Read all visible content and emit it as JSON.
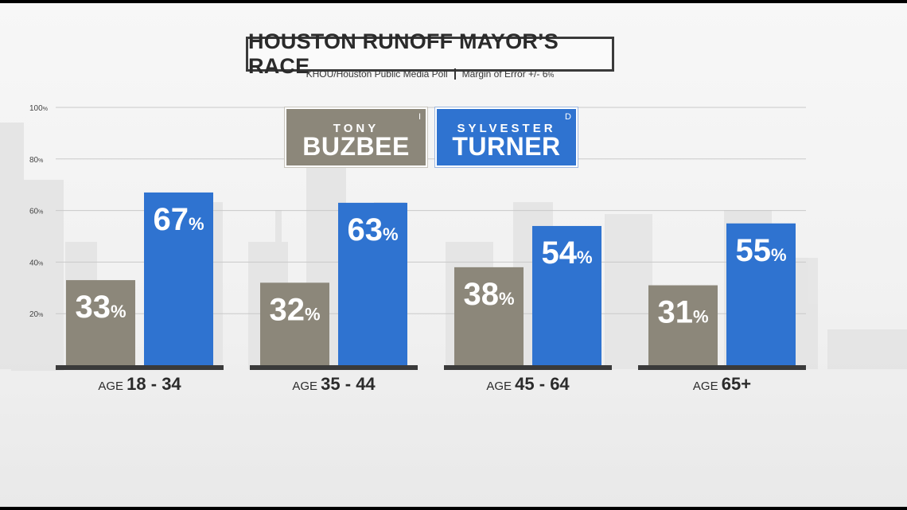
{
  "title": "HOUSTON RUNOFF MAYOR’S RACE",
  "subtitle": {
    "source": "KHOU/Houston Public Media Poll",
    "margin_label": "Margin of Error +/- 6",
    "margin_unit": "%"
  },
  "legend": [
    {
      "first": "TONY",
      "last": "BUZBEE",
      "party": "I",
      "color": "#8c877a"
    },
    {
      "first": "SYLVESTER",
      "last": "TURNER",
      "party": "D",
      "color": "#2f73d0"
    }
  ],
  "chart_data": {
    "type": "bar",
    "categories": [
      {
        "prefix": "AGE",
        "range": "18 - 34"
      },
      {
        "prefix": "AGE",
        "range": "35 - 44"
      },
      {
        "prefix": "AGE",
        "range": "45 - 64"
      },
      {
        "prefix": "AGE",
        "range": "65+"
      }
    ],
    "series": [
      {
        "name": "BUZBEE",
        "color": "#8c877a",
        "values": [
          33,
          32,
          38,
          31
        ]
      },
      {
        "name": "TURNER",
        "color": "#2f73d0",
        "values": [
          67,
          63,
          54,
          55
        ]
      }
    ],
    "yticks": [
      "20",
      "40",
      "60",
      "80",
      "100"
    ],
    "ytick_unit": "%",
    "value_unit": "%",
    "ylim": [
      0,
      100
    ],
    "grid": true,
    "legend_position": "top-center"
  }
}
